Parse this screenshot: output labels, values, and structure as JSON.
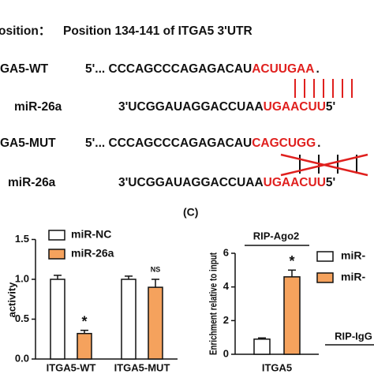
{
  "sequence_panel": {
    "heading_prefix": "osition：",
    "heading": "Position 134-141 of ITGA5 3'UTR",
    "rows": [
      {
        "label": "GA5-WT",
        "seq": "5'... CCCAGCCCAGAGACAU",
        "site": "ACUUGAA",
        "end": "."
      },
      {
        "label": "miR-26a",
        "seq": "3'UCGGAUAGGACCUAA",
        "site": "UGAACUU",
        "end": "5'"
      },
      {
        "label": "GA5-MUT",
        "seq": "5'... CCCAGCCCAGAGACAU",
        "site": "CAGCUGG",
        "end": "."
      },
      {
        "label": "miR-26a",
        "seq": "3'UCGGAUAGGACCUAA",
        "site": "UGAACUU",
        "end": "5'"
      }
    ]
  },
  "chart_data": [
    {
      "type": "bar",
      "ylabel": "activity",
      "categories": [
        "ITGA5-WT",
        "ITGA5-MUT"
      ],
      "series": [
        {
          "name": "miR-NC",
          "color": "#ffffff",
          "values": [
            1.0,
            1.0
          ],
          "errors": [
            0.05,
            0.04
          ]
        },
        {
          "name": "miR-26a",
          "color": "#f5a25d",
          "values": [
            0.32,
            0.9
          ],
          "errors": [
            0.04,
            0.1
          ]
        }
      ],
      "annotations": [
        "*",
        "NS"
      ],
      "ylim": [
        0,
        1.5
      ],
      "yticks": [
        {
          "value": 0,
          "label": "0.0"
        },
        {
          "value": 0.5,
          "label": "0.5"
        },
        {
          "value": 1,
          "label": "1.0"
        },
        {
          "value": 1.5,
          "label": "1.5"
        }
      ]
    },
    {
      "type": "bar",
      "panel_label": "(C)",
      "ylabel": "Enrichment relative to input",
      "categories": [
        "ITGA5"
      ],
      "group_labels": [
        "RIP-Ago2",
        "RIP-IgG"
      ],
      "series": [
        {
          "name": "miR-",
          "color": "#ffffff",
          "values": [
            0.9
          ],
          "errors": [
            0.07
          ]
        },
        {
          "name": "miR-",
          "color": "#f5a25d",
          "values": [
            4.6
          ],
          "errors": [
            0.4
          ]
        }
      ],
      "annotations": [
        "*"
      ],
      "ylim": [
        0,
        6
      ],
      "yticks": [
        0,
        2,
        4,
        6
      ]
    }
  ]
}
